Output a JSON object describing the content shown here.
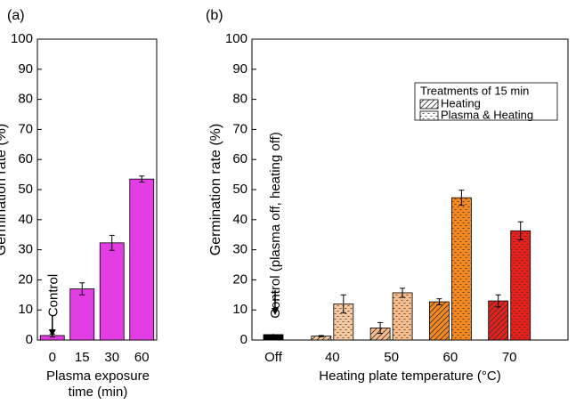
{
  "chart_data": [
    {
      "type": "bar",
      "panel_label": "(a)",
      "categories": [
        "0",
        "15",
        "30",
        "60"
      ],
      "values": [
        1.5,
        17,
        32.3,
        53.5
      ],
      "errors": [
        0.5,
        2,
        2.5,
        1
      ],
      "color": "#e23de2",
      "ylim": [
        0,
        100
      ],
      "yticks": [
        0,
        10,
        20,
        30,
        40,
        50,
        60,
        70,
        80,
        90,
        100
      ],
      "ylabel": "Germination rate (%)",
      "xlabel": "Plasma exposure time (min)",
      "annotation": "Control"
    },
    {
      "type": "grouped_bar",
      "panel_label": "(b)",
      "categories": [
        "Off",
        "40",
        "50",
        "60",
        "70"
      ],
      "category_colors": [
        "#000000",
        "#f6c8a0",
        "#f7bb8c",
        "#f5891f",
        "#e8201c"
      ],
      "control": {
        "value": 1.8,
        "error": 0.3
      },
      "series": [
        {
          "name": "Heating",
          "pattern": "hatch",
          "values": [
            null,
            1.3,
            4,
            12.7,
            13
          ],
          "errors": [
            null,
            0.2,
            1.8,
            1,
            2
          ]
        },
        {
          "name": "Plasma & Heating",
          "pattern": "dots",
          "values": [
            null,
            12,
            15.7,
            47.3,
            36.3
          ],
          "errors": [
            null,
            3,
            1.5,
            2.5,
            3
          ]
        }
      ],
      "legend_title": "Treatments of 15 min",
      "legend_position": "upper right",
      "ylim": [
        0,
        100
      ],
      "yticks": [
        0,
        10,
        20,
        30,
        40,
        50,
        60,
        70,
        80,
        90,
        100
      ],
      "ylabel": "Germination rate (%)",
      "xlabel": "Heating plate temperature (°C)",
      "annotation": "Control (plasma off, heating off)"
    }
  ]
}
